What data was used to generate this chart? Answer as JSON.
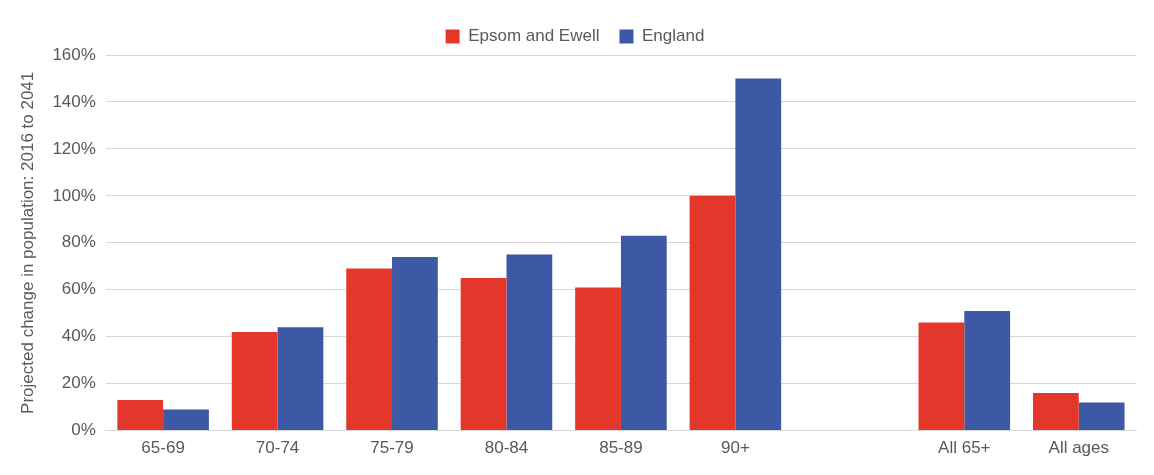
{
  "chart_data": {
    "type": "bar",
    "ylabel": "Projected change in population: 2016 to 2041",
    "categories": [
      "65-69",
      "70-74",
      "75-79",
      "80-84",
      "85-89",
      "90+",
      null,
      "All 65+",
      "All ages"
    ],
    "series": [
      {
        "name": "Epsom and Ewell",
        "color": "#e2372a",
        "values": [
          13,
          42,
          69,
          65,
          61,
          100,
          null,
          46,
          16
        ]
      },
      {
        "name": "England",
        "color": "#3d58a5",
        "values": [
          9,
          44,
          74,
          75,
          83,
          150,
          null,
          51,
          12
        ]
      }
    ],
    "ylim": [
      0,
      160
    ],
    "yticks": [
      {
        "value": 0,
        "label": "0%"
      },
      {
        "value": 20,
        "label": "20%"
      },
      {
        "value": 40,
        "label": "40%"
      },
      {
        "value": 60,
        "label": "60%"
      },
      {
        "value": 80,
        "label": "80%"
      },
      {
        "value": 100,
        "label": "100%"
      },
      {
        "value": 120,
        "label": "120%"
      },
      {
        "value": 140,
        "label": "140%"
      },
      {
        "value": 160,
        "label": "160%"
      }
    ],
    "grid": "y",
    "legend": "top"
  }
}
